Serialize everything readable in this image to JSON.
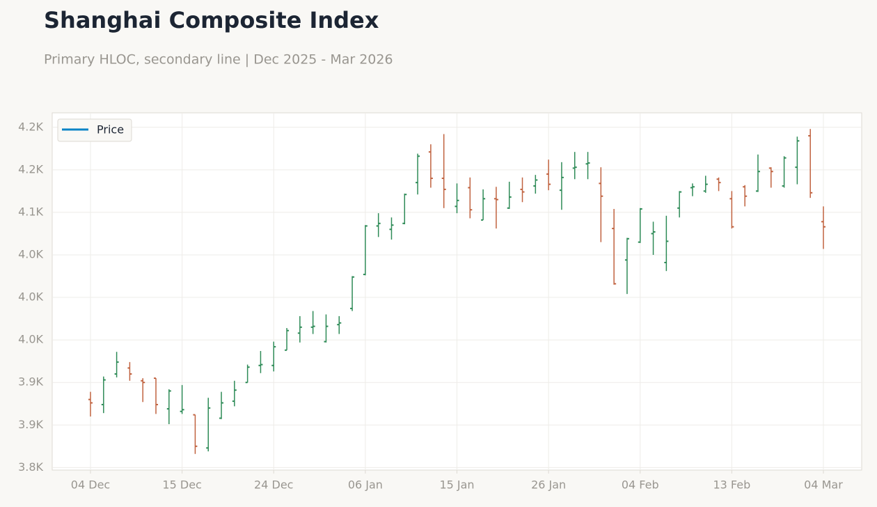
{
  "chart_data": {
    "type": "ohlc",
    "title": "Shanghai Composite Index",
    "subtitle": "Primary HLOC, secondary line | Dec 2025 - Mar 2026",
    "categories": [
      "04 Dec",
      null,
      null,
      null,
      null,
      null,
      null,
      "15 Dec",
      null,
      null,
      null,
      null,
      null,
      null,
      "24 Dec",
      null,
      null,
      null,
      null,
      null,
      null,
      "06 Jan",
      null,
      null,
      null,
      null,
      null,
      null,
      "15 Jan",
      null,
      null,
      null,
      null,
      null,
      null,
      "26 Jan",
      null,
      null,
      null,
      null,
      null,
      null,
      "04 Feb",
      null,
      null,
      null,
      null,
      null,
      null,
      "13 Feb",
      null,
      null,
      null,
      null,
      null,
      null,
      "04 Mar"
    ],
    "series": [
      {
        "name": "Price",
        "color": "#0a84c6",
        "open": [
          3880,
          3874,
          3910,
          3917,
          3902,
          3905,
          3869,
          3866,
          3862,
          3823,
          3858,
          3878,
          3900,
          3920,
          3920,
          3938,
          3958,
          3965,
          3948,
          3968,
          3987,
          4027,
          4084,
          4080,
          4087,
          4135,
          4171,
          4140,
          4107,
          4129,
          4091,
          4116,
          4105,
          4127,
          4131,
          4145,
          4126,
          4152,
          4157,
          4134,
          4081,
          4044,
          4065,
          4075,
          4041,
          4105,
          4129,
          4125,
          4139,
          4116,
          4130,
          4125,
          4152,
          4131,
          4153,
          4190,
          4089
        ],
        "high": [
          3889,
          3907,
          3936,
          3924,
          3905,
          3905,
          3892,
          3897,
          3862,
          3882,
          3889,
          3902,
          3921,
          3937,
          3948,
          3964,
          3978,
          3984,
          3980,
          3978,
          4025,
          4085,
          4099,
          4094,
          4122,
          4169,
          4180,
          4192,
          4134,
          4141,
          4127,
          4130,
          4136,
          4141,
          4144,
          4162,
          4159,
          4171,
          4171,
          4153,
          4104,
          4070,
          4105,
          4089,
          4096,
          4125,
          4134,
          4143,
          4141,
          4125,
          4132,
          4168,
          4153,
          4166,
          4189,
          4198,
          4107
        ],
        "low": [
          3860,
          3864,
          3906,
          3902,
          3877,
          3863,
          3851,
          3863,
          3816,
          3819,
          3857,
          3872,
          3900,
          3911,
          3913,
          3938,
          3947,
          3957,
          3947,
          3957,
          3984,
          4026,
          4071,
          4068,
          4086,
          4121,
          4129,
          4105,
          4099,
          4093,
          4091,
          4081,
          4104,
          4112,
          4122,
          4126,
          4103,
          4139,
          4139,
          4065,
          4015,
          4004,
          4064,
          4050,
          4031,
          4094,
          4119,
          4123,
          4125,
          4081,
          4107,
          4124,
          4129,
          4129,
          4133,
          4117,
          4057
        ],
        "close": [
          3876,
          3903,
          3924,
          3910,
          3900,
          3874,
          3890,
          3868,
          3825,
          3870,
          3876,
          3891,
          3918,
          3921,
          3942,
          3961,
          3965,
          3966,
          3966,
          3970,
          4024,
          4084,
          4087,
          4085,
          4121,
          4166,
          4140,
          4127,
          4114,
          4103,
          4116,
          4115,
          4118,
          4124,
          4138,
          4133,
          4141,
          4153,
          4158,
          4119,
          4016,
          4069,
          4104,
          4077,
          4066,
          4124,
          4130,
          4133,
          4135,
          4083,
          4119,
          4148,
          4148,
          4164,
          4184,
          4123,
          4083
        ]
      }
    ],
    "up_color": "#2e8b57",
    "down_color": "#c0623f",
    "ylim": [
      3797,
      4217
    ],
    "yticks": [
      {
        "value": 3800,
        "label": "3.8K"
      },
      {
        "value": 3850,
        "label": "3.9K"
      },
      {
        "value": 3900,
        "label": "3.9K"
      },
      {
        "value": 3950,
        "label": "4.0K"
      },
      {
        "value": 4000,
        "label": "4.0K"
      },
      {
        "value": 4050,
        "label": "4.0K"
      },
      {
        "value": 4100,
        "label": "4.1K"
      },
      {
        "value": 4150,
        "label": "4.2K"
      },
      {
        "value": 4200,
        "label": "4.2K"
      }
    ],
    "grid": true,
    "legend": "upper left"
  }
}
